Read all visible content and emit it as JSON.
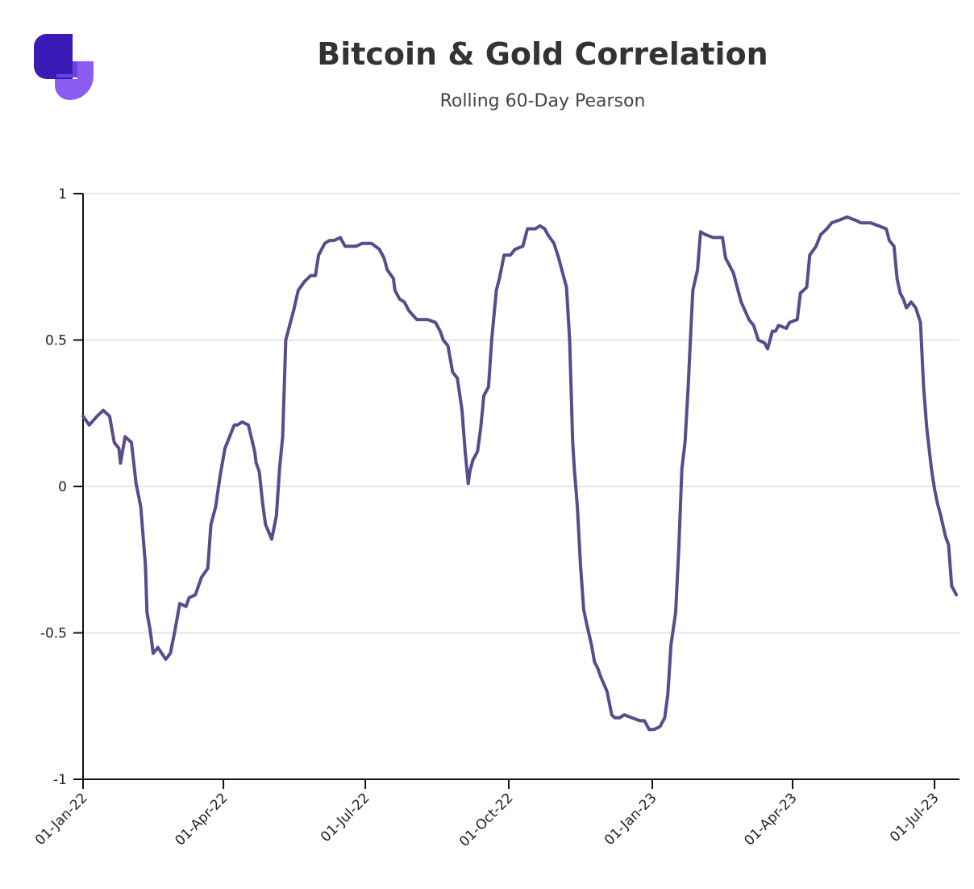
{
  "chart_data": {
    "type": "line",
    "title": "Bitcoin & Gold Correlation",
    "subtitle": "Rolling 60-Day Pearson",
    "color": "#5b4a8c",
    "grid": true,
    "xlim": [
      "2022-01-01",
      "2023-07-17"
    ],
    "xticks": [
      {
        "value": "2022-01-01",
        "label": "01-Jan-22"
      },
      {
        "value": "2022-04-01",
        "label": "01-Apr-22"
      },
      {
        "value": "2022-07-01",
        "label": "01-Jul-22"
      },
      {
        "value": "2022-10-01",
        "label": "01-Oct-22"
      },
      {
        "value": "2023-01-01",
        "label": "01-Jan-23"
      },
      {
        "value": "2023-04-01",
        "label": "01-Apr-23"
      },
      {
        "value": "2023-07-01",
        "label": "01-Jul-23"
      }
    ],
    "ylim": [
      -1,
      1
    ],
    "yticks": [
      1,
      0.5,
      0,
      -0.5,
      -1
    ],
    "x": [
      "2022-01-01",
      "2022-01-05",
      "2022-01-10",
      "2022-01-14",
      "2022-01-18",
      "2022-01-21",
      "2022-01-24",
      "2022-01-25",
      "2022-01-28",
      "2022-02-01",
      "2022-02-04",
      "2022-02-07",
      "2022-02-10",
      "2022-02-11",
      "2022-02-13",
      "2022-02-15",
      "2022-02-18",
      "2022-02-23",
      "2022-02-26",
      "2022-03-01",
      "2022-03-04",
      "2022-03-08",
      "2022-03-10",
      "2022-03-14",
      "2022-03-18",
      "2022-03-22",
      "2022-03-24",
      "2022-03-27",
      "2022-03-30",
      "2022-04-02",
      "2022-04-05",
      "2022-04-08",
      "2022-04-10",
      "2022-04-13",
      "2022-04-17",
      "2022-04-21",
      "2022-04-22",
      "2022-04-24",
      "2022-04-26",
      "2022-04-28",
      "2022-05-02",
      "2022-05-05",
      "2022-05-07",
      "2022-05-09",
      "2022-05-11",
      "2022-05-14",
      "2022-05-16",
      "2022-05-19",
      "2022-05-23",
      "2022-05-27",
      "2022-05-30",
      "2022-06-01",
      "2022-06-05",
      "2022-06-08",
      "2022-06-11",
      "2022-06-15",
      "2022-06-18",
      "2022-06-22",
      "2022-06-25",
      "2022-06-29",
      "2022-07-05",
      "2022-07-10",
      "2022-07-13",
      "2022-07-15",
      "2022-07-19",
      "2022-07-20",
      "2022-07-23",
      "2022-07-26",
      "2022-07-29",
      "2022-08-03",
      "2022-08-10",
      "2022-08-15",
      "2022-08-18",
      "2022-08-20",
      "2022-08-23",
      "2022-08-26",
      "2022-08-29",
      "2022-09-01",
      "2022-09-03",
      "2022-09-05",
      "2022-09-06",
      "2022-09-08",
      "2022-09-11",
      "2022-09-13",
      "2022-09-15",
      "2022-09-18",
      "2022-09-20",
      "2022-09-23",
      "2022-09-25",
      "2022-09-28",
      "2022-10-02",
      "2022-10-05",
      "2022-10-10",
      "2022-10-13",
      "2022-10-18",
      "2022-10-21",
      "2022-10-24",
      "2022-10-26",
      "2022-10-30",
      "2022-11-02",
      "2022-11-05",
      "2022-11-07",
      "2022-11-09",
      "2022-11-11",
      "2022-11-12",
      "2022-11-14",
      "2022-11-16",
      "2022-11-18",
      "2022-11-20",
      "2022-11-23",
      "2022-11-25",
      "2022-11-27",
      "2022-11-29",
      "2022-12-03",
      "2022-12-06",
      "2022-12-08",
      "2022-12-11",
      "2022-12-14",
      "2022-12-19",
      "2022-12-24",
      "2022-12-27",
      "2022-12-30",
      "2023-01-02",
      "2023-01-06",
      "2023-01-09",
      "2023-01-11",
      "2023-01-13",
      "2023-01-16",
      "2023-01-18",
      "2023-01-20",
      "2023-01-22",
      "2023-01-24",
      "2023-01-26",
      "2023-01-27",
      "2023-01-30",
      "2023-02-01",
      "2023-02-04",
      "2023-02-09",
      "2023-02-15",
      "2023-02-17",
      "2023-02-20",
      "2023-02-22",
      "2023-02-25",
      "2023-02-27",
      "2023-03-04",
      "2023-03-07",
      "2023-03-10",
      "2023-03-14",
      "2023-03-16",
      "2023-03-19",
      "2023-03-21",
      "2023-03-23",
      "2023-03-28",
      "2023-03-30",
      "2023-04-04",
      "2023-04-06",
      "2023-04-10",
      "2023-04-12",
      "2023-04-16",
      "2023-04-19",
      "2023-04-23",
      "2023-04-26",
      "2023-05-01",
      "2023-05-06",
      "2023-05-11",
      "2023-05-15",
      "2023-05-21",
      "2023-05-26",
      "2023-05-31",
      "2023-06-02",
      "2023-06-05",
      "2023-06-07",
      "2023-06-09",
      "2023-06-11",
      "2023-06-13",
      "2023-06-16",
      "2023-06-19",
      "2023-06-22",
      "2023-06-24",
      "2023-06-26",
      "2023-06-29",
      "2023-07-01",
      "2023-07-03",
      "2023-07-05",
      "2023-07-08",
      "2023-07-10",
      "2023-07-12",
      "2023-07-15"
    ],
    "values": [
      0.24,
      0.21,
      0.24,
      0.26,
      0.24,
      0.15,
      0.13,
      0.08,
      0.17,
      0.15,
      0.01,
      -0.07,
      -0.27,
      -0.43,
      -0.49,
      -0.57,
      -0.55,
      -0.59,
      -0.57,
      -0.49,
      -0.4,
      -0.41,
      -0.38,
      -0.37,
      -0.31,
      -0.28,
      -0.13,
      -0.07,
      0.04,
      0.13,
      0.17,
      0.21,
      0.21,
      0.22,
      0.21,
      0.12,
      0.08,
      0.05,
      -0.05,
      -0.13,
      -0.18,
      -0.1,
      0.06,
      0.17,
      0.5,
      0.56,
      0.6,
      0.67,
      0.7,
      0.72,
      0.72,
      0.79,
      0.83,
      0.84,
      0.84,
      0.85,
      0.82,
      0.82,
      0.82,
      0.83,
      0.83,
      0.81,
      0.78,
      0.74,
      0.71,
      0.67,
      0.64,
      0.63,
      0.6,
      0.57,
      0.57,
      0.56,
      0.53,
      0.5,
      0.48,
      0.39,
      0.37,
      0.26,
      0.12,
      0.01,
      0.05,
      0.09,
      0.12,
      0.2,
      0.31,
      0.34,
      0.5,
      0.67,
      0.71,
      0.79,
      0.79,
      0.81,
      0.82,
      0.88,
      0.88,
      0.89,
      0.88,
      0.86,
      0.83,
      0.78,
      0.72,
      0.68,
      0.5,
      0.15,
      0.06,
      -0.07,
      -0.27,
      -0.42,
      -0.47,
      -0.54,
      -0.6,
      -0.62,
      -0.65,
      -0.7,
      -0.78,
      -0.79,
      -0.79,
      -0.78,
      -0.79,
      -0.8,
      -0.8,
      -0.83,
      -0.83,
      -0.82,
      -0.79,
      -0.71,
      -0.54,
      -0.43,
      -0.21,
      0.06,
      0.15,
      0.34,
      0.56,
      0.67,
      0.74,
      0.87,
      0.86,
      0.85,
      0.85,
      0.78,
      0.75,
      0.73,
      0.67,
      0.63,
      0.57,
      0.55,
      0.5,
      0.49,
      0.47,
      0.53,
      0.53,
      0.55,
      0.54,
      0.56,
      0.57,
      0.66,
      0.68,
      0.79,
      0.82,
      0.86,
      0.88,
      0.9,
      0.91,
      0.92,
      0.91,
      0.9,
      0.9,
      0.89,
      0.88,
      0.84,
      0.82,
      0.71,
      0.66,
      0.64,
      0.61,
      0.63,
      0.61,
      0.56,
      0.34,
      0.2,
      0.06,
      -0.01,
      -0.06,
      -0.1,
      -0.17,
      -0.2,
      -0.34,
      -0.37
    ]
  }
}
